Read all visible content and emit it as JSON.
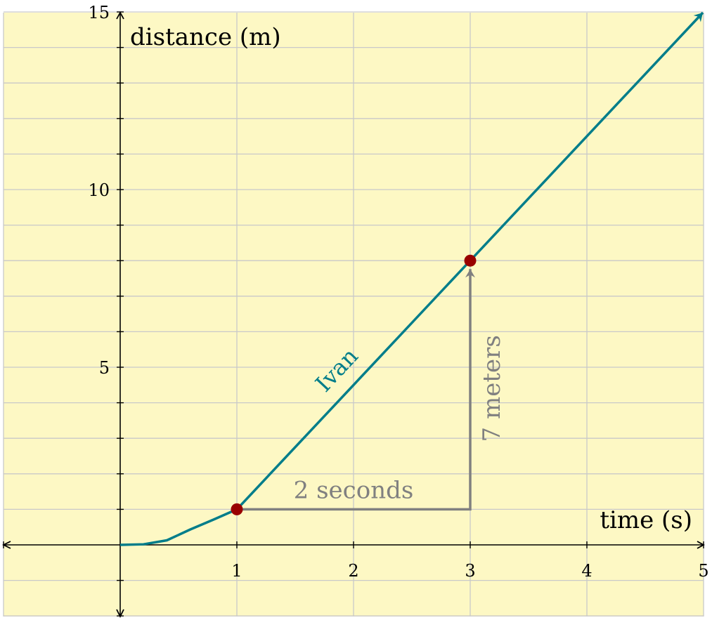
{
  "colors": {
    "background": "#fdf8c4",
    "grid": "#c9c9c9",
    "axis": "#000000",
    "series": "#007d8a",
    "point": "#990000",
    "annotation": "#808080"
  },
  "chart_data": {
    "type": "line",
    "title": "",
    "xlabel": "time (s)",
    "ylabel": "distance (m)",
    "xlim": [
      -1,
      5
    ],
    "ylim": [
      -2,
      15
    ],
    "x_ticks": [
      "1",
      "2",
      "3",
      "4",
      "5"
    ],
    "y_ticks": [
      "5",
      "10",
      "15"
    ],
    "grid": true,
    "series": [
      {
        "name": "Ivan",
        "curve": [
          [
            0,
            0
          ],
          [
            0.2,
            0.016
          ],
          [
            0.4,
            0.128
          ],
          [
            0.6,
            0.432
          ],
          [
            0.8,
            0.712
          ],
          [
            1,
            1
          ]
        ],
        "line": [
          [
            1,
            1
          ],
          [
            5,
            15
          ]
        ]
      }
    ],
    "points": [
      [
        1,
        1
      ],
      [
        3,
        8
      ]
    ],
    "annotations": {
      "run_label": "2 seconds",
      "rise_label": "7 meters"
    }
  }
}
